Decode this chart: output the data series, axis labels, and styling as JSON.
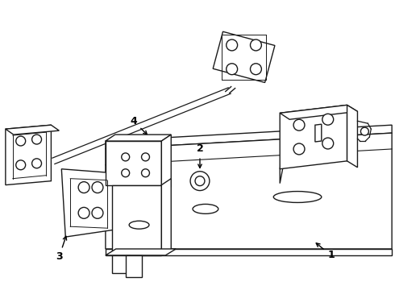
{
  "background_color": "#ffffff",
  "line_color": "#1a1a1a",
  "line_width": 1.0,
  "label_fontsize": 9,
  "arrow_color": "#000000"
}
